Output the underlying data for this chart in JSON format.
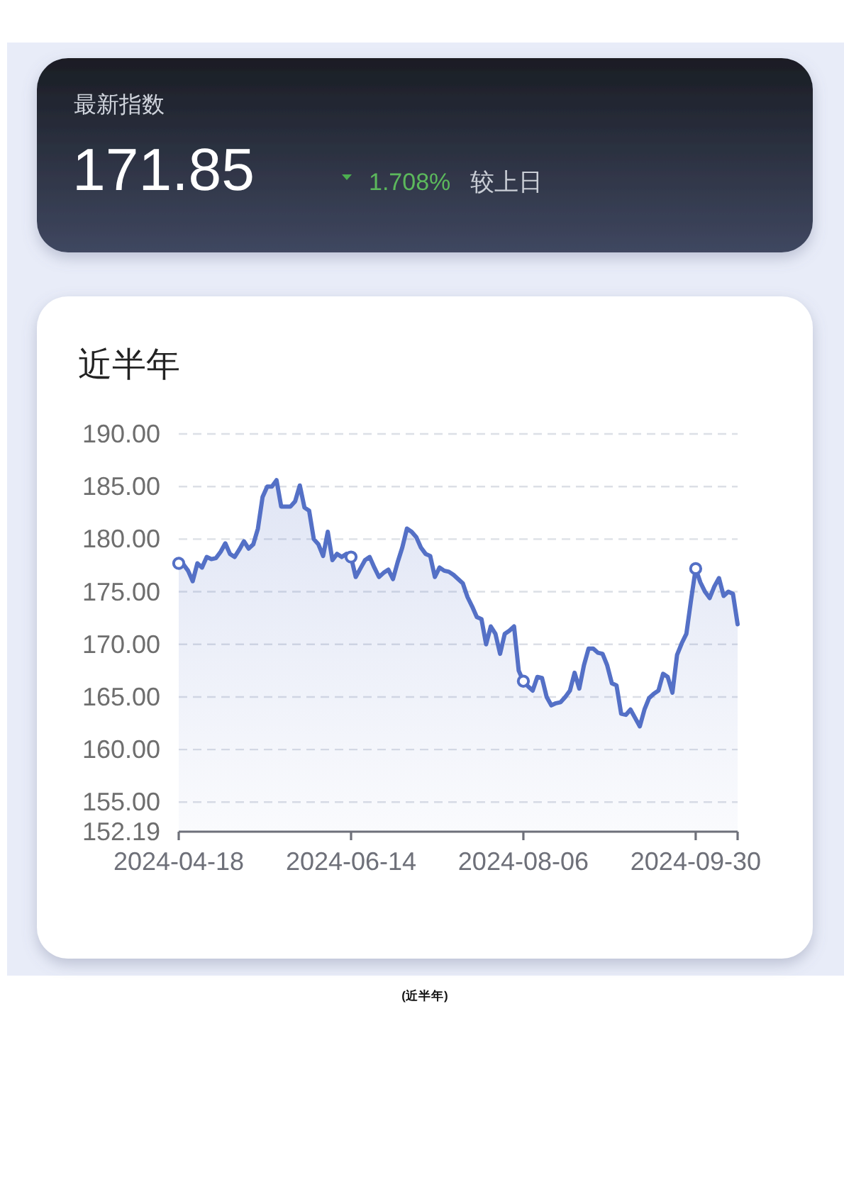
{
  "chart_data": [
    {
      "type": "other",
      "title": "最新指数",
      "annotations": [
        "171.85",
        "1.708%",
        "较上日"
      ]
    },
    {
      "type": "area",
      "title": "近半年",
      "categories": [
        "2024-04-18",
        null,
        null,
        null,
        null,
        null,
        null,
        null,
        null,
        null,
        null,
        null,
        null,
        null,
        null,
        null,
        null,
        null,
        null,
        null,
        null,
        null,
        null,
        null,
        null,
        null,
        null,
        null,
        null,
        null,
        null,
        null,
        null,
        null,
        null,
        null,
        null,
        "2024-06-14",
        null,
        null,
        null,
        null,
        null,
        null,
        null,
        null,
        null,
        null,
        null,
        null,
        null,
        null,
        null,
        null,
        null,
        null,
        null,
        null,
        null,
        null,
        null,
        null,
        null,
        null,
        null,
        null,
        null,
        null,
        null,
        null,
        null,
        null,
        null,
        null,
        "2024-08-06",
        null,
        null,
        null,
        null,
        null,
        null,
        null,
        null,
        null,
        null,
        null,
        null,
        null,
        null,
        null,
        null,
        null,
        null,
        null,
        null,
        null,
        null,
        null,
        null,
        null,
        null,
        null,
        null,
        null,
        null,
        null,
        null,
        null,
        null,
        null,
        null,
        "2024-09-30",
        null,
        null,
        null,
        null,
        null,
        null,
        null,
        null,
        null
      ],
      "series": [
        {
          "color": "#5470c6",
          "values": [
            177.7,
            177.6,
            177.0,
            176.0,
            177.7,
            177.3,
            178.3,
            178.1,
            178.2,
            178.8,
            179.6,
            178.6,
            178.3,
            179.0,
            179.8,
            179.1,
            179.5,
            181.0,
            184.0,
            185.0,
            185.0,
            185.6,
            183.1,
            183.1,
            183.1,
            183.6,
            185.1,
            183.0,
            182.7,
            180.0,
            179.5,
            178.4,
            180.7,
            178.0,
            178.6,
            178.3,
            178.6,
            178.3,
            176.4,
            177.2,
            178.0,
            178.3,
            177.3,
            176.4,
            176.8,
            177.1,
            176.2,
            177.8,
            179.2,
            181.0,
            180.7,
            180.2,
            179.2,
            178.6,
            178.4,
            176.4,
            177.3,
            177.0,
            176.9,
            176.6,
            176.2,
            175.8,
            174.5,
            173.6,
            172.6,
            172.4,
            170.0,
            171.7,
            171.0,
            169.1,
            171.0,
            171.3,
            171.7,
            167.5,
            166.5,
            166.0,
            165.6,
            166.9,
            166.8,
            165.0,
            164.2,
            164.4,
            164.5,
            165.0,
            165.6,
            167.3,
            165.8,
            168.0,
            169.6,
            169.6,
            169.2,
            169.1,
            168.0,
            166.3,
            166.1,
            163.4,
            163.3,
            163.8,
            163.0,
            162.2,
            163.8,
            164.9,
            165.3,
            165.6,
            167.2,
            166.9,
            165.4,
            169.0,
            170.1,
            171.0,
            174.2,
            177.2,
            175.9,
            175.0,
            174.4,
            175.5,
            176.3,
            174.6,
            175.0,
            174.8,
            171.9
          ]
        },
        {
          "type": "scatter",
          "color": "#5470c6",
          "marker": "circle",
          "values": [
            177.7,
            null,
            null,
            null,
            null,
            null,
            null,
            null,
            null,
            null,
            null,
            null,
            null,
            null,
            null,
            null,
            null,
            null,
            null,
            null,
            null,
            null,
            null,
            null,
            null,
            null,
            null,
            null,
            null,
            null,
            null,
            null,
            null,
            null,
            null,
            null,
            null,
            178.3,
            null,
            null,
            null,
            null,
            null,
            null,
            null,
            null,
            null,
            null,
            null,
            null,
            null,
            null,
            null,
            null,
            null,
            null,
            null,
            null,
            null,
            null,
            null,
            null,
            null,
            null,
            null,
            null,
            null,
            null,
            null,
            null,
            null,
            null,
            null,
            null,
            166.5,
            null,
            null,
            null,
            null,
            null,
            null,
            null,
            null,
            null,
            null,
            null,
            null,
            null,
            null,
            null,
            null,
            null,
            null,
            null,
            null,
            null,
            null,
            null,
            null,
            null,
            null,
            null,
            null,
            null,
            null,
            null,
            null,
            null,
            null,
            null,
            null,
            177.2,
            null,
            null,
            null,
            null,
            null,
            null,
            null,
            null,
            null
          ]
        }
      ],
      "ylim": [
        152.19,
        190
      ],
      "yticks": [
        {
          "value": 152.19,
          "label": "152.19"
        },
        {
          "value": 155,
          "label": "155.00"
        },
        {
          "value": 160,
          "label": "160.00"
        },
        {
          "value": 165,
          "label": "165.00"
        },
        {
          "value": 170,
          "label": "170.00"
        },
        {
          "value": 175,
          "label": "175.00"
        },
        {
          "value": 180,
          "label": "180.00"
        },
        {
          "value": 185,
          "label": "185.00"
        },
        {
          "value": 190,
          "label": "190.00"
        }
      ],
      "grid": "y",
      "annotations": [
        "(近半年)"
      ]
    }
  ]
}
